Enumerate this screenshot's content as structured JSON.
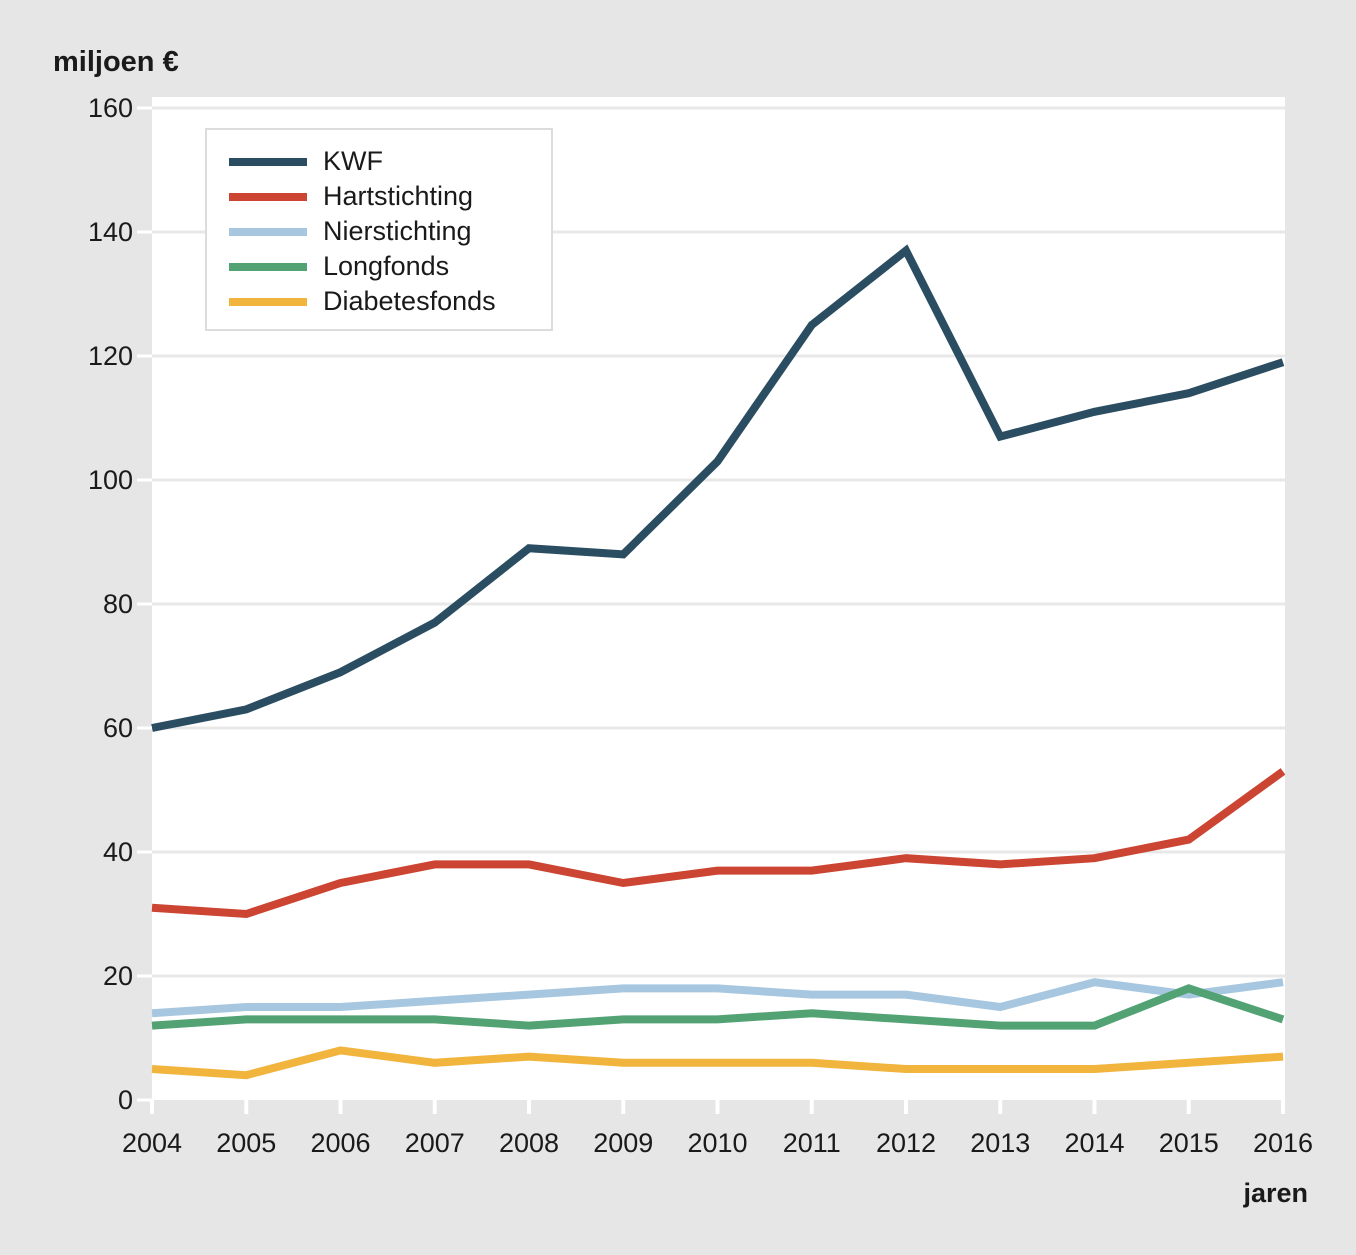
{
  "page": {
    "background_color": "#e6e6e6",
    "plot_background_color": "#ffffff",
    "gridline_color": "#e8e8e8",
    "tick_mark_color": "#ffffff",
    "text_color": "#1a1a1a"
  },
  "chart_data": {
    "type": "line",
    "title": "miljoen €",
    "ylabel": "miljoen €",
    "xlabel": "jaren",
    "x": [
      2004,
      2005,
      2006,
      2007,
      2008,
      2009,
      2010,
      2011,
      2012,
      2013,
      2014,
      2015,
      2016
    ],
    "y_ticks": [
      0,
      20,
      40,
      60,
      80,
      100,
      120,
      140,
      160
    ],
    "ylim": [
      0,
      160
    ],
    "grid": true,
    "legend_position": "top-left",
    "series": [
      {
        "name": "KWF",
        "color": "#2b4d61",
        "values": [
          60,
          63,
          69,
          77,
          89,
          88,
          103,
          125,
          137,
          107,
          111,
          114,
          119
        ]
      },
      {
        "name": "Hartstichting",
        "color": "#cc4432",
        "values": [
          31,
          30,
          35,
          38,
          38,
          35,
          37,
          37,
          39,
          38,
          39,
          42,
          53
        ]
      },
      {
        "name": "Nierstichting",
        "color": "#a7c7e0",
        "values": [
          14,
          15,
          15,
          16,
          17,
          18,
          18,
          17,
          17,
          15,
          19,
          17,
          19
        ]
      },
      {
        "name": "Longfonds",
        "color": "#52a274",
        "values": [
          12,
          13,
          13,
          13,
          12,
          13,
          13,
          14,
          13,
          12,
          12,
          18,
          13
        ]
      },
      {
        "name": "Diabetesfonds",
        "color": "#f1b43c",
        "values": [
          5,
          4,
          8,
          6,
          7,
          6,
          6,
          6,
          5,
          5,
          5,
          6,
          7
        ]
      }
    ]
  }
}
